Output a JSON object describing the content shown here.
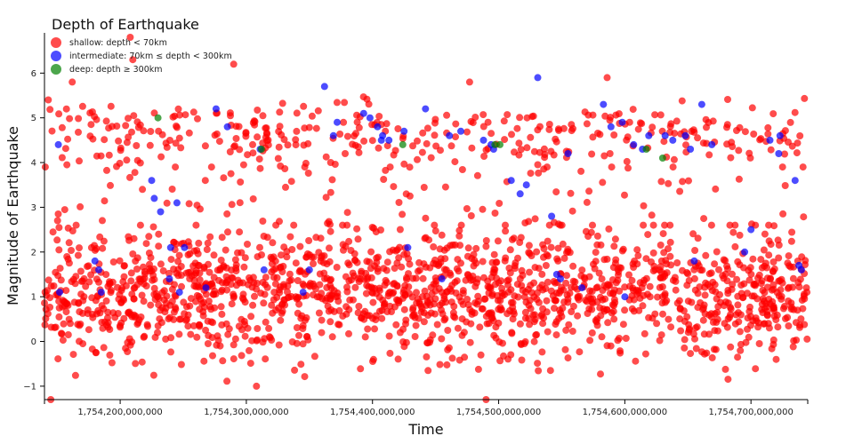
{
  "chart_data": {
    "type": "scatter",
    "title": "",
    "xlabel": "Time",
    "ylabel": "Magnitude of Earthquake",
    "xlim": [
      1754140000000,
      1754745000000
    ],
    "ylim": [
      -1.3,
      6.9
    ],
    "x_ticks": [
      1754200000000,
      1754300000000,
      1754400000000,
      1754500000000,
      1754600000000,
      1754700000000
    ],
    "x_tick_labels": [
      "1,754,200,000,000",
      "1,754,300,000,000",
      "1,754,400,000,000",
      "1,754,500,000,000",
      "1,754,600,000,000",
      "1,754,700,000,000"
    ],
    "y_ticks": [
      -1,
      0,
      1,
      2,
      3,
      4,
      5,
      6
    ],
    "y_tick_labels": [
      "−1",
      "0",
      "1",
      "2",
      "3",
      "4",
      "5",
      "6"
    ],
    "grid": false,
    "legend": {
      "title": "Depth of Earthquake",
      "placement": "top-left",
      "entries": [
        {
          "key": "shallow",
          "label": "shallow: depth < 70km",
          "color": "#ff0000"
        },
        {
          "key": "intermediate",
          "label": "intermediate: 70km ≤ depth < 300km",
          "color": "#0000ff"
        },
        {
          "key": "deep",
          "label": "deep: depth ≥ 300km",
          "color": "#008000"
        }
      ]
    },
    "series": [
      {
        "name": "deep: depth ≥ 300km",
        "color": "#008000",
        "x": [
          1754230000000,
          1754312000000,
          1754424000000,
          1754497000000,
          1754501000000,
          1754617000000,
          1754630000000
        ],
        "y": [
          5.0,
          4.3,
          4.4,
          4.4,
          4.4,
          4.3,
          4.1
        ]
      },
      {
        "name": "intermediate: 70km ≤ depth < 300km",
        "color": "#0000ff",
        "x": [
          1754152000000,
          1754151000000,
          1754185000000,
          1754183000000,
          1754225000000,
          1754227000000,
          1754232000000,
          1754240000000,
          1754239000000,
          1754245000000,
          1754251000000,
          1754247000000,
          1754276000000,
          1754285000000,
          1754314000000,
          1754311000000,
          1754345000000,
          1754362000000,
          1754369000000,
          1754372000000,
          1754393000000,
          1754398000000,
          1754408000000,
          1754404000000,
          1754407000000,
          1754413000000,
          1754425000000,
          1754428000000,
          1754442000000,
          1754461000000,
          1754470000000,
          1754488000000,
          1754494000000,
          1754496000000,
          1754510000000,
          1754517000000,
          1754522000000,
          1754531000000,
          1754542000000,
          1754546000000,
          1754549000000,
          1754555000000,
          1754566000000,
          1754583000000,
          1754589000000,
          1754598000000,
          1754607000000,
          1754614000000,
          1754619000000,
          1754632000000,
          1754638000000,
          1754648000000,
          1754652000000,
          1754655000000,
          1754661000000,
          1754669000000,
          1754715000000,
          1754723000000,
          1754722000000,
          1754735000000,
          1754740000000,
          1754738000000,
          1754700000000,
          1754180000000,
          1754268000000,
          1754350000000,
          1754455000000,
          1754600000000,
          1754695000000
        ],
        "y": [
          1.1,
          4.4,
          1.1,
          1.6,
          3.6,
          3.2,
          2.9,
          2.1,
          1.4,
          3.1,
          2.1,
          1.1,
          5.2,
          4.8,
          1.6,
          4.3,
          1.1,
          5.7,
          4.6,
          4.9,
          5.1,
          5.0,
          4.6,
          4.8,
          4.5,
          4.5,
          4.7,
          2.1,
          5.2,
          4.6,
          4.7,
          4.5,
          4.4,
          4.3,
          3.6,
          3.3,
          3.5,
          5.9,
          2.8,
          1.5,
          1.4,
          4.2,
          1.2,
          5.3,
          4.8,
          4.9,
          4.4,
          4.3,
          4.6,
          4.6,
          4.5,
          4.6,
          4.3,
          1.8,
          5.3,
          4.4,
          4.5,
          4.6,
          4.2,
          3.6,
          1.6,
          1.7,
          2.5,
          1.8,
          1.2,
          1.6,
          1.4,
          1.0,
          2.0
        ]
      },
      {
        "name": "shallow: depth < 70km",
        "color": "#ff0000",
        "generated": true,
        "count": 2100,
        "seed": 7,
        "xlim": [
          1754140000000,
          1754745000000
        ],
        "cluster_low": {
          "center": 1.1,
          "spread": 0.7,
          "min": -1.3,
          "max": 2.6
        },
        "cluster_high": {
          "center": 4.6,
          "spread": 0.35,
          "min": 3.9,
          "max": 5.5
        },
        "outliers": [
          {
            "x": 1754208000000,
            "y": 6.8
          },
          {
            "x": 1754210000000,
            "y": 6.3
          },
          {
            "x": 1754290000000,
            "y": 6.2
          },
          {
            "x": 1754586000000,
            "y": 5.9
          },
          {
            "x": 1754162000000,
            "y": 5.8
          },
          {
            "x": 1754477000000,
            "y": 5.8
          },
          {
            "x": 1754305000000,
            "y": 4.4
          },
          {
            "x": 1754143000000,
            "y": 5.4
          },
          {
            "x": 1754720000000,
            "y": -0.4
          },
          {
            "x": 1754490000000,
            "y": -1.3
          },
          {
            "x": 1754145000000,
            "y": -1.3
          },
          {
            "x": 1754308000000,
            "y": -1.0
          }
        ]
      }
    ]
  }
}
